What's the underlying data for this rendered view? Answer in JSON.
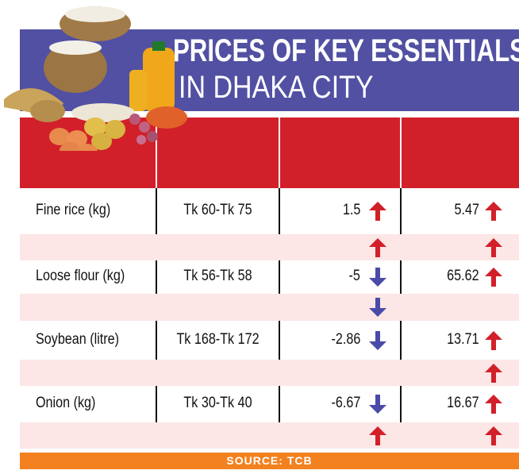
{
  "title": {
    "line1": "PRICES OF KEY ESSENTIALS",
    "line2": "IN DHAKA CITY"
  },
  "colors": {
    "banner": "#5150a2",
    "header": "#d2202a",
    "pink_row": "#fde6e6",
    "up": "#d2202a",
    "down": "#4a4aa8",
    "source_bar": "#f38120"
  },
  "chart_data": {
    "type": "table",
    "title": "PRICES OF KEY ESSENTIALS IN DHAKA CITY",
    "rows": [
      {
        "item": "Fine rice (kg)",
        "price": "Tk 60-Tk 75",
        "change1": "1.5",
        "dir1": "up",
        "change2": "5.47",
        "dir2": "up",
        "sub_dir1": "up",
        "sub_dir2": "up"
      },
      {
        "item": "Loose flour (kg)",
        "price": "Tk 56-Tk 58",
        "change1": "-5",
        "dir1": "down",
        "change2": "65.62",
        "dir2": "up",
        "sub_dir1": "down",
        "sub_dir2": ""
      },
      {
        "item": "Soybean (litre)",
        "price": "Tk 168-Tk 172",
        "change1": "-2.86",
        "dir1": "down",
        "change2": "13.71",
        "dir2": "up",
        "sub_dir1": "",
        "sub_dir2": "up"
      },
      {
        "item": "Onion (kg)",
        "price": "Tk 30-Tk 40",
        "change1": "-6.67",
        "dir1": "down",
        "change2": "16.67",
        "dir2": "up",
        "sub_dir1": "up",
        "sub_dir2": "up"
      }
    ]
  },
  "source": "SOURCE: TCB"
}
